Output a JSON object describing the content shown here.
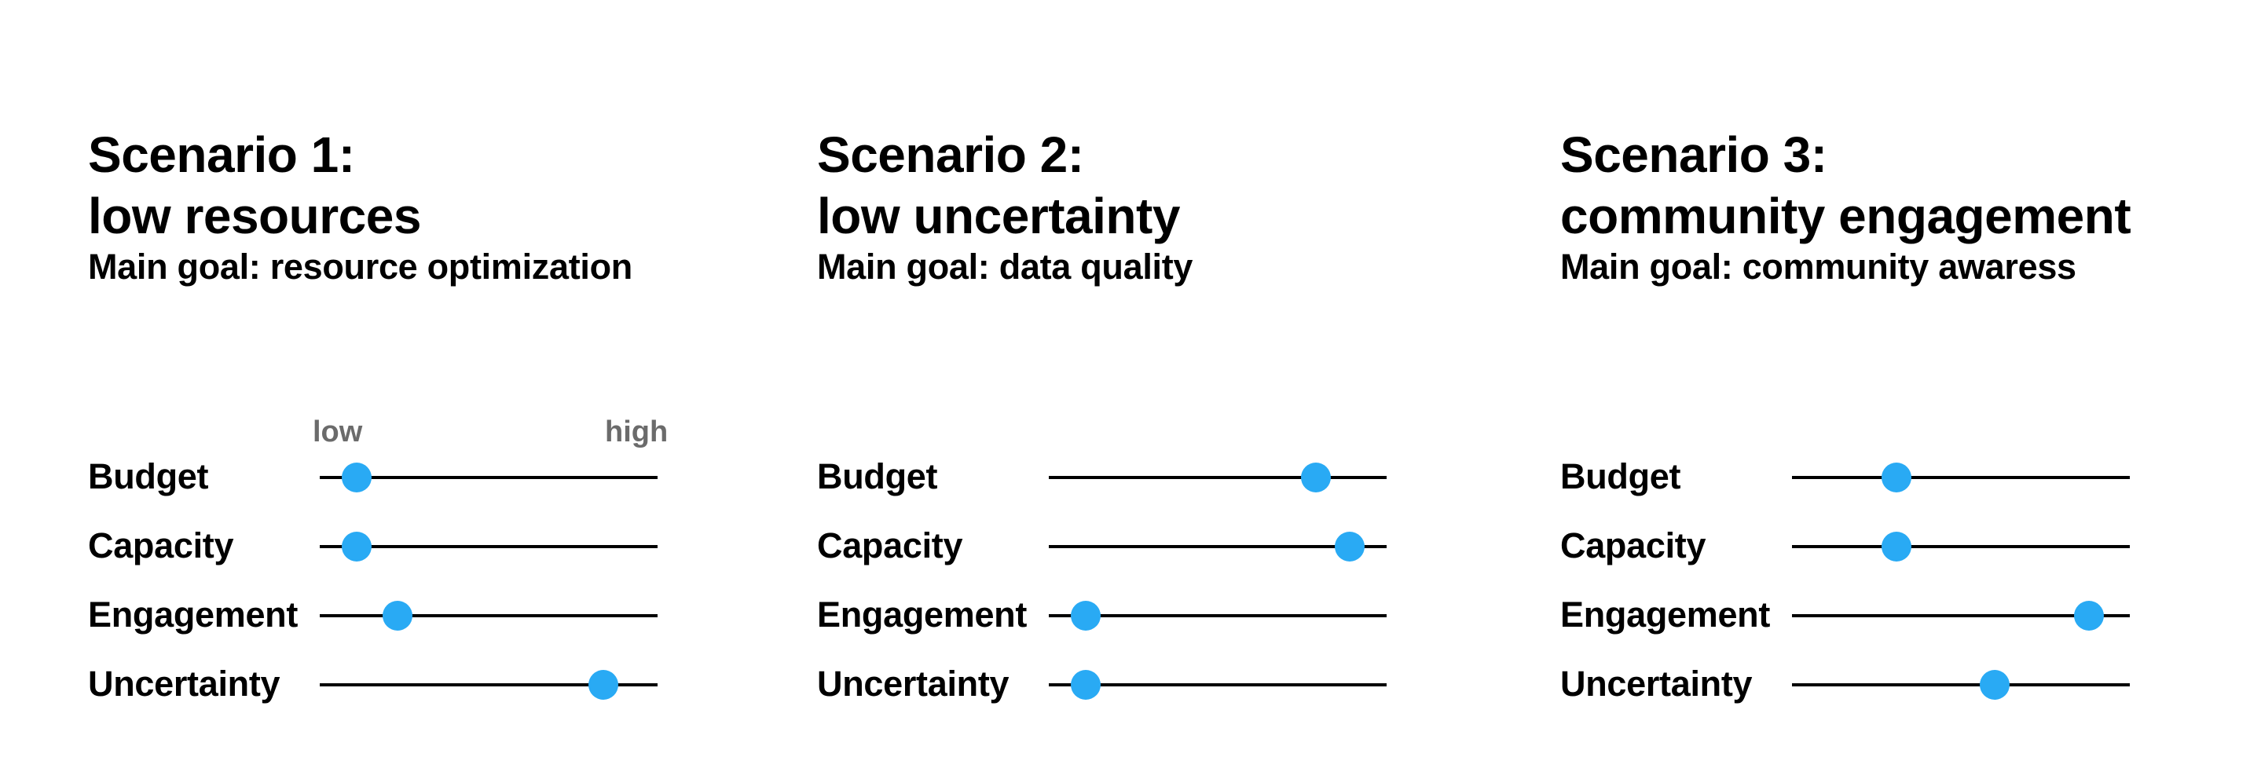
{
  "colors": {
    "knob": "#29aaf4",
    "track": "#000000",
    "scale_label": "#6b6b6b"
  },
  "scale": {
    "low_label": "low",
    "high_label": "high"
  },
  "scenarios": [
    {
      "title_line1": "Scenario 1:",
      "title_line2": "low resources",
      "goal": "Main goal: resource optimization",
      "factors": [
        {
          "label": "Budget",
          "level": 0.11
        },
        {
          "label": "Capacity",
          "level": 0.11
        },
        {
          "label": "Engagement",
          "level": 0.23
        },
        {
          "label": "Uncertainty",
          "level": 0.84
        }
      ]
    },
    {
      "title_line1": "Scenario 2:",
      "title_line2": "low uncertainty",
      "goal": "Main goal: data quality",
      "factors": [
        {
          "label": "Budget",
          "level": 0.79
        },
        {
          "label": "Capacity",
          "level": 0.89
        },
        {
          "label": "Engagement",
          "level": 0.11
        },
        {
          "label": "Uncertainty",
          "level": 0.11
        }
      ]
    },
    {
      "title_line1": "Scenario 3:",
      "title_line2": "community engagement",
      "goal": "Main goal: community awaress",
      "factors": [
        {
          "label": "Budget",
          "level": 0.31
        },
        {
          "label": "Capacity",
          "level": 0.31
        },
        {
          "label": "Engagement",
          "level": 0.88
        },
        {
          "label": "Uncertainty",
          "level": 0.6
        }
      ]
    }
  ]
}
